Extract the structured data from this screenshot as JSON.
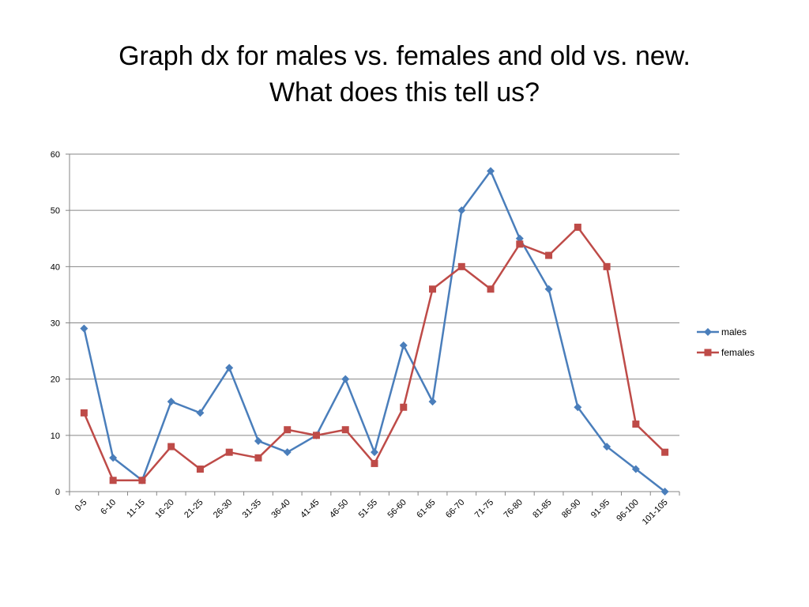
{
  "slide": {
    "title_line1": "Graph dx for males vs. females and old vs. new.",
    "title_line2": "What does this tell us?"
  },
  "chart_data": {
    "type": "line",
    "categories": [
      "0-5",
      "6-10",
      "11-15",
      "16-20",
      "21-25",
      "26-30",
      "31-35",
      "36-40",
      "41-45",
      "46-50",
      "51-55",
      "56-60",
      "61-65",
      "66-70",
      "71-75",
      "76-80",
      "81-85",
      "86-90",
      "91-95",
      "96-100",
      "101-105"
    ],
    "series": [
      {
        "name": "males",
        "color": "#4a7ebb",
        "marker": "diamond",
        "values": [
          29,
          6,
          2,
          16,
          14,
          22,
          9,
          7,
          10,
          20,
          7,
          26,
          16,
          50,
          57,
          45,
          36,
          15,
          8,
          4,
          0
        ]
      },
      {
        "name": "females",
        "color": "#be4b48",
        "marker": "square",
        "values": [
          14,
          2,
          2,
          8,
          4,
          7,
          6,
          11,
          10,
          11,
          5,
          15,
          36,
          40,
          36,
          44,
          42,
          47,
          40,
          12,
          7
        ]
      }
    ],
    "ylim": [
      0,
      60
    ],
    "yticks": [
      0,
      10,
      20,
      30,
      40,
      50,
      60
    ],
    "grid": true,
    "legend": "right",
    "title": "",
    "xlabel": "",
    "ylabel": ""
  }
}
